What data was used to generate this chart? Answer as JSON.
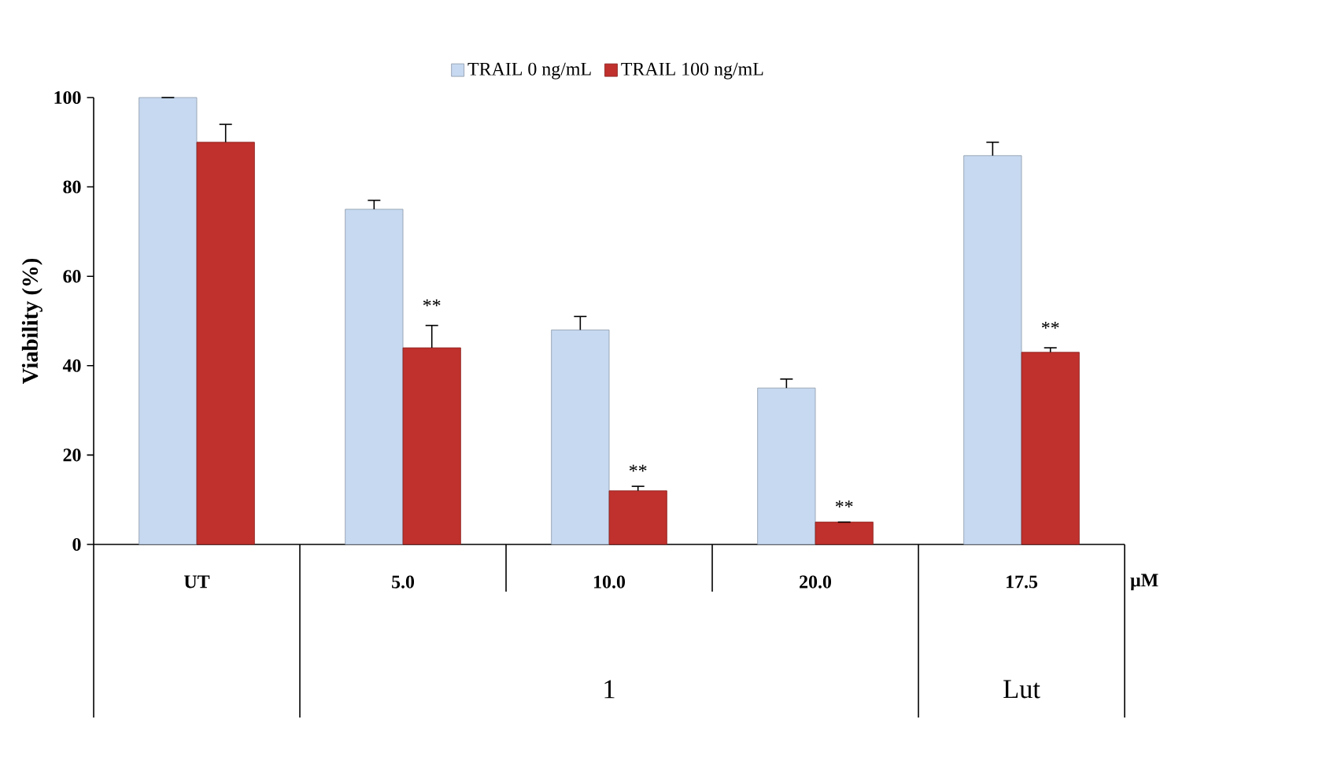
{
  "chart_data": {
    "type": "bar",
    "ylabel": "Viability (%)",
    "xlabel": "μM",
    "categories": [
      "UT",
      "5.0",
      "10.0",
      "20.0",
      "17.5"
    ],
    "series": [
      {
        "name": "TRAIL 0 ng/mL",
        "color": "#c6d9f0",
        "values": [
          100,
          75,
          48,
          35,
          87
        ],
        "errors": [
          null,
          2,
          3,
          2,
          3
        ]
      },
      {
        "name": "TRAIL 100 ng/mL",
        "color": "#c0302c",
        "values": [
          90,
          44,
          12,
          5,
          43
        ],
        "errors": [
          4,
          5,
          1,
          null,
          1
        ]
      }
    ],
    "ylim": [
      0,
      100
    ],
    "yticks": [
      0,
      20,
      40,
      60,
      80,
      100
    ],
    "legend": "top",
    "annotations": [
      {
        "text": "**",
        "x": "5.0",
        "y": 52
      },
      {
        "text": "**",
        "x": "10.0",
        "y": 15
      },
      {
        "text": "**",
        "x": "20.0",
        "y": 7
      },
      {
        "text": "**",
        "x": "17.5",
        "y": 47
      },
      "1",
      "Lut"
    ]
  }
}
